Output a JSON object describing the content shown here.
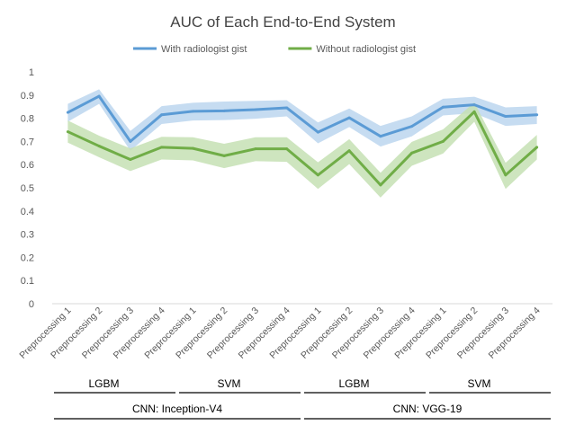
{
  "chart_data": {
    "type": "line",
    "title": "AUC of Each End-to-End System",
    "xlabel": "",
    "ylabel": "",
    "ylim": [
      0,
      1
    ],
    "yticks": [
      "0",
      "0.1",
      "0.2",
      "0.3",
      "0.4",
      "0.5",
      "0.6",
      "0.7",
      "0.8",
      "0.9",
      "1"
    ],
    "grid": false,
    "legend_position": "top",
    "categories": [
      "Preprocessing 1",
      "Preprocessing 2",
      "Preprocessing 3",
      "Preprocessing 4",
      "Preprocessing 1",
      "Preprocessing 2",
      "Preprocessing 3",
      "Preprocessing 4",
      "Preprocessing 1",
      "Preprocessing 2",
      "Preprocessing 3",
      "Preprocessing 4",
      "Preprocessing 1",
      "Preprocessing 2",
      "Preprocessing 3",
      "Preprocessing 4"
    ],
    "series": [
      {
        "name": "With radiologist gist",
        "color": "#5b9bd5",
        "band_color": "#bcd6ef",
        "values": [
          0.825,
          0.895,
          0.7,
          0.815,
          0.83,
          0.832,
          0.837,
          0.845,
          0.74,
          0.802,
          0.722,
          0.765,
          0.848,
          0.858,
          0.808,
          0.815
        ],
        "upper": [
          0.862,
          0.925,
          0.745,
          0.852,
          0.867,
          0.872,
          0.875,
          0.878,
          0.782,
          0.842,
          0.767,
          0.808,
          0.884,
          0.893,
          0.847,
          0.852
        ],
        "lower": [
          0.785,
          0.862,
          0.66,
          0.775,
          0.79,
          0.792,
          0.798,
          0.808,
          0.692,
          0.762,
          0.678,
          0.722,
          0.812,
          0.822,
          0.767,
          0.775
        ]
      },
      {
        "name": "Without radiologist gist",
        "color": "#70ad47",
        "band_color": "#c5e0b4",
        "values": [
          0.742,
          0.68,
          0.622,
          0.675,
          0.67,
          0.638,
          0.668,
          0.668,
          0.555,
          0.66,
          0.512,
          0.65,
          0.7,
          0.828,
          0.555,
          0.675
        ],
        "upper": [
          0.79,
          0.725,
          0.67,
          0.72,
          0.718,
          0.69,
          0.718,
          0.718,
          0.61,
          0.71,
          0.565,
          0.698,
          0.752,
          0.868,
          0.608,
          0.728
        ],
        "lower": [
          0.695,
          0.632,
          0.572,
          0.622,
          0.618,
          0.585,
          0.615,
          0.612,
          0.495,
          0.602,
          0.458,
          0.595,
          0.648,
          0.785,
          0.495,
          0.622
        ]
      }
    ],
    "groups_level1": [
      {
        "label": "LGBM",
        "start": 0,
        "end": 3
      },
      {
        "label": "SVM",
        "start": 4,
        "end": 7
      },
      {
        "label": "LGBM",
        "start": 8,
        "end": 11
      },
      {
        "label": "SVM",
        "start": 12,
        "end": 15
      }
    ],
    "groups_level2": [
      {
        "label": "CNN: Inception-V4",
        "start": 0,
        "end": 7
      },
      {
        "label": "CNN: VGG-19",
        "start": 8,
        "end": 15
      }
    ]
  }
}
